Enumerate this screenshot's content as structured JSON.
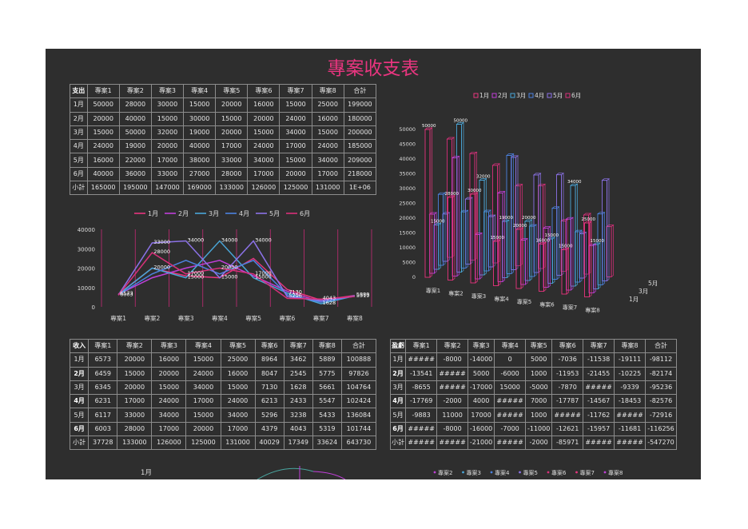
{
  "title": "專案收支表",
  "projects": [
    "專案1",
    "專案2",
    "專案3",
    "專案4",
    "專案5",
    "專案6",
    "專案7",
    "專案8"
  ],
  "months": [
    "1月",
    "2月",
    "3月",
    "4月",
    "5月",
    "6月"
  ],
  "expense_table": {
    "corner": "支出",
    "total_label": "合計",
    "subtotal_label": "小計",
    "rows": [
      [
        "50000",
        "28000",
        "30000",
        "15000",
        "20000",
        "16000",
        "15000",
        "25000",
        "199000"
      ],
      [
        "20000",
        "40000",
        "15000",
        "30000",
        "15000",
        "20000",
        "24000",
        "16000",
        "180000"
      ],
      [
        "15000",
        "50000",
        "32000",
        "19000",
        "20000",
        "15000",
        "34000",
        "15000",
        "200000"
      ],
      [
        "24000",
        "19000",
        "20000",
        "40000",
        "17000",
        "24000",
        "17000",
        "24000",
        "185000"
      ],
      [
        "16000",
        "22000",
        "17000",
        "38000",
        "33000",
        "34000",
        "15000",
        "34000",
        "209000"
      ],
      [
        "40000",
        "36000",
        "33000",
        "27000",
        "28000",
        "17000",
        "20000",
        "17000",
        "218000"
      ]
    ],
    "subtotal": [
      "165000",
      "195000",
      "147000",
      "169000",
      "133000",
      "126000",
      "125000",
      "131000",
      "1E+06"
    ]
  },
  "income_table": {
    "corner": "收入",
    "total_label": "合計",
    "subtotal_label": "小計",
    "rows": [
      [
        "6573",
        "20000",
        "16000",
        "15000",
        "25000",
        "8964",
        "3462",
        "5889",
        "100888"
      ],
      [
        "6459",
        "15000",
        "20000",
        "24000",
        "16000",
        "8047",
        "2545",
        "5775",
        "97826"
      ],
      [
        "6345",
        "20000",
        "15000",
        "34000",
        "15000",
        "7130",
        "1628",
        "5661",
        "104764"
      ],
      [
        "6231",
        "17000",
        "24000",
        "17000",
        "24000",
        "6213",
        "2433",
        "5547",
        "102424"
      ],
      [
        "6117",
        "33000",
        "34000",
        "15000",
        "34000",
        "5296",
        "3238",
        "5433",
        "136084"
      ],
      [
        "6003",
        "28000",
        "17000",
        "20000",
        "17000",
        "4379",
        "4043",
        "5319",
        "101744"
      ]
    ],
    "subtotal": [
      "37728",
      "133000",
      "126000",
      "125000",
      "131000",
      "40029",
      "17349",
      "33624",
      "643730"
    ]
  },
  "profit_table": {
    "corner": "盈虧",
    "total_label": "合計",
    "subtotal_label": "小計",
    "rows": [
      [
        "#####",
        "-8000",
        "-14000",
        "0",
        "5000",
        "-7036",
        "-11538",
        "-19111",
        "-98112"
      ],
      [
        "-13541",
        "#####",
        "5000",
        "-6000",
        "1000",
        "-11953",
        "-21455",
        "-10225",
        "-82174"
      ],
      [
        "-8655",
        "#####",
        "-17000",
        "15000",
        "-5000",
        "-7870",
        "#####",
        "-9339",
        "-95236"
      ],
      [
        "-17769",
        "-2000",
        "4000",
        "#####",
        "7000",
        "-17787",
        "-14567",
        "-18453",
        "-82576"
      ],
      [
        "-9883",
        "11000",
        "17000",
        "#####",
        "1000",
        "#####",
        "-11762",
        "#####",
        "-72916"
      ],
      [
        "#####",
        "-8000",
        "-16000",
        "-7000",
        "-11000",
        "-12621",
        "-15957",
        "-11681",
        "-116256"
      ]
    ],
    "subtotal": [
      "#####",
      "#####",
      "-21000",
      "#####",
      "-2000",
      "-85971",
      "#####",
      "#####",
      "-547270"
    ]
  },
  "colors": {
    "series": [
      "#e8357f",
      "#c03fd8",
      "#4aa6d8",
      "#4c82e0",
      "#8c72e8",
      "#d8307a"
    ],
    "title": "#e8357f",
    "background": "#2e2e2e"
  },
  "chart_data": [
    {
      "type": "line",
      "categories": [
        "專案1",
        "專案2",
        "專案3",
        "專案4",
        "專案5",
        "專案6",
        "專案7",
        "專案8"
      ],
      "ylim": [
        0,
        40000
      ],
      "yticks": [
        "0",
        "10000",
        "20000",
        "30000",
        "40000"
      ],
      "legend": "top",
      "series": [
        {
          "name": "1月",
          "values": [
            6573,
            20000,
            16000,
            15000,
            25000,
            8964,
            3462,
            5889
          ]
        },
        {
          "name": "2月",
          "values": [
            6459,
            15000,
            20000,
            24000,
            16000,
            8047,
            2545,
            5775
          ]
        },
        {
          "name": "3月",
          "values": [
            6345,
            20000,
            15000,
            34000,
            15000,
            7130,
            1628,
            5661
          ]
        },
        {
          "name": "4月",
          "values": [
            6231,
            17000,
            24000,
            17000,
            24000,
            6213,
            2433,
            5547
          ]
        },
        {
          "name": "5月",
          "values": [
            6117,
            33000,
            34000,
            15000,
            34000,
            5296,
            3238,
            5433
          ]
        },
        {
          "name": "6月",
          "values": [
            6003,
            28000,
            17000,
            20000,
            17000,
            4379,
            4043,
            5319
          ]
        }
      ],
      "data_labels": [
        {
          "text": "6573",
          "cat": 0,
          "v": 6573
        },
        {
          "text": "6003",
          "cat": 0,
          "v": 6003
        },
        {
          "text": "33000",
          "cat": 1,
          "v": 33000
        },
        {
          "text": "28000",
          "cat": 1,
          "v": 28000
        },
        {
          "text": "20000",
          "cat": 1,
          "v": 20000
        },
        {
          "text": "34000",
          "cat": 2,
          "v": 34000
        },
        {
          "text": "17000",
          "cat": 2,
          "v": 17000
        },
        {
          "text": "15000",
          "cat": 2,
          "v": 15000
        },
        {
          "text": "34000",
          "cat": 3,
          "v": 34000
        },
        {
          "text": "20000",
          "cat": 3,
          "v": 20000
        },
        {
          "text": "15000",
          "cat": 3,
          "v": 15000
        },
        {
          "text": "34000",
          "cat": 4,
          "v": 34000
        },
        {
          "text": "17000",
          "cat": 4,
          "v": 17000
        },
        {
          "text": "15000",
          "cat": 4,
          "v": 15000
        },
        {
          "text": "7130",
          "cat": 5,
          "v": 7130
        },
        {
          "text": "5296",
          "cat": 5,
          "v": 5296
        },
        {
          "text": "4043",
          "cat": 6,
          "v": 4043
        },
        {
          "text": "1628",
          "cat": 6,
          "v": 1628
        },
        {
          "text": "5889",
          "cat": 7,
          "v": 5889
        },
        {
          "text": "5319",
          "cat": 7,
          "v": 5319
        }
      ]
    },
    {
      "type": "bar",
      "subtype": "3d-column",
      "categories": [
        "專案1",
        "專案2",
        "專案3",
        "專案4",
        "專案5",
        "專案6",
        "專案7",
        "專案8"
      ],
      "depth_labels": [
        "1月",
        "3月",
        "5月"
      ],
      "ylim": [
        0,
        50000
      ],
      "yticks": [
        "0",
        "5000",
        "10000",
        "15000",
        "20000",
        "25000",
        "30000",
        "35000",
        "40000",
        "45000",
        "50000"
      ],
      "legend": "top",
      "series": [
        {
          "name": "1月",
          "values": [
            50000,
            28000,
            30000,
            15000,
            20000,
            16000,
            15000,
            25000
          ]
        },
        {
          "name": "2月",
          "values": [
            20000,
            40000,
            15000,
            30000,
            15000,
            20000,
            24000,
            16000
          ]
        },
        {
          "name": "3月",
          "values": [
            15000,
            50000,
            32000,
            19000,
            20000,
            15000,
            34000,
            15000
          ]
        },
        {
          "name": "4月",
          "values": [
            24000,
            19000,
            20000,
            40000,
            17000,
            24000,
            17000,
            24000
          ]
        },
        {
          "name": "5月",
          "values": [
            16000,
            22000,
            17000,
            38000,
            33000,
            34000,
            15000,
            34000
          ]
        },
        {
          "name": "6月",
          "values": [
            40000,
            36000,
            33000,
            27000,
            28000,
            17000,
            20000,
            17000
          ]
        }
      ],
      "data_labels": [
        {
          "text": "50000",
          "cat": 0,
          "s": 0
        },
        {
          "text": "28000",
          "cat": 1,
          "s": 0
        },
        {
          "text": "50000",
          "cat": 1,
          "s": 2
        },
        {
          "text": "30000",
          "cat": 2,
          "s": 0
        },
        {
          "text": "32000",
          "cat": 2,
          "s": 2
        },
        {
          "text": "15000",
          "cat": 0,
          "s": 2
        },
        {
          "text": "15000",
          "cat": 3,
          "s": 0
        },
        {
          "text": "19000",
          "cat": 3,
          "s": 2
        },
        {
          "text": "20000",
          "cat": 4,
          "s": 0
        },
        {
          "text": "20000",
          "cat": 4,
          "s": 2
        },
        {
          "text": "16000",
          "cat": 5,
          "s": 0
        },
        {
          "text": "15000",
          "cat": 5,
          "s": 2
        },
        {
          "text": "34000",
          "cat": 6,
          "s": 2
        },
        {
          "text": "15000",
          "cat": 6,
          "s": 0
        },
        {
          "text": "25000",
          "cat": 7,
          "s": 0
        },
        {
          "text": "15000",
          "cat": 7,
          "s": 2
        }
      ]
    },
    {
      "type": "pie",
      "title": "1月",
      "legend": "top",
      "legend_entries": [
        "專案2",
        "專案3",
        "專案4",
        "專案5",
        "專案6",
        "專案7",
        "專案8"
      ]
    }
  ]
}
